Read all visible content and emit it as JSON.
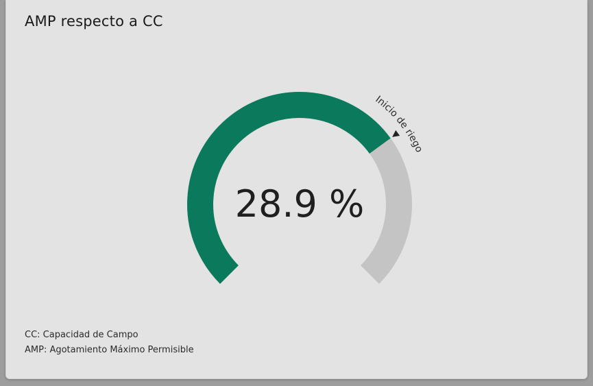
{
  "card": {
    "title": "AMP respecto a CC",
    "footnotes": [
      "CC: Capacidad de Campo",
      "AMP: Agotamiento Máximo Permisible"
    ]
  },
  "gauge": {
    "value_text": "28.9 %",
    "value": 28.9,
    "threshold_label": "Inicio de riego",
    "fill_fraction": 0.7,
    "colors": {
      "fill": "#0b7a5c",
      "track": "#c4c4c4",
      "text": "#1f1f1f",
      "marker": "#222222"
    }
  }
}
